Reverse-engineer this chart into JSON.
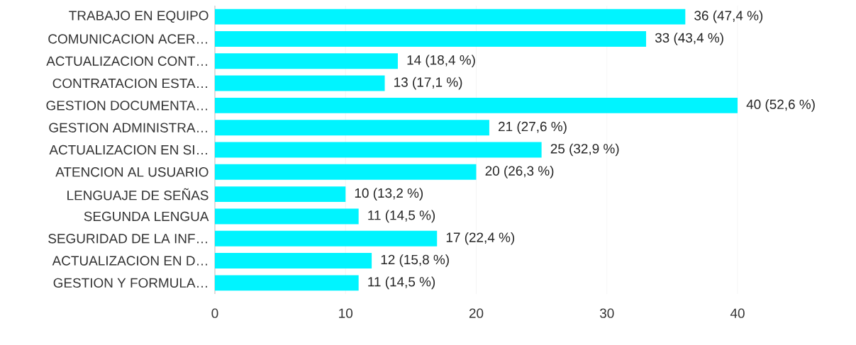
{
  "chart_data": {
    "type": "bar",
    "orientation": "horizontal",
    "categories": [
      "TRABAJO EN EQUIPO",
      "COMUNICACION ACER…",
      "ACTUALIZACION CONT…",
      "CONTRATACION ESTA…",
      "GESTION DOCUMENTA…",
      "GESTION ADMINISTRA…",
      "ACTUALIZACION EN SI…",
      "ATENCION AL USUARIO",
      "LENGUAJE DE SEÑAS",
      "SEGUNDA LENGUA",
      "SEGURIDAD DE LA INF…",
      "ACTUALIZACION EN D…",
      "GESTION Y FORMULA…"
    ],
    "values": [
      36,
      33,
      14,
      13,
      40,
      21,
      25,
      20,
      10,
      11,
      17,
      12,
      11
    ],
    "value_labels": [
      "36 (47,4 %)",
      "33 (43,4 %)",
      "14 (18,4 %)",
      "13 (17,1 %)",
      "40 (52,6 %)",
      "21 (27,6 %)",
      "25 (32,9 %)",
      "20 (26,3 %)",
      "10 (13,2 %)",
      "11 (14,5 %)",
      "17 (22,4 %)",
      "12 (15,8 %)",
      "11 (14,5 %)"
    ],
    "color": "#00f4ff",
    "xlim": [
      0,
      40
    ],
    "xticks": [
      0,
      10,
      20,
      30,
      40
    ],
    "grid": "x"
  }
}
